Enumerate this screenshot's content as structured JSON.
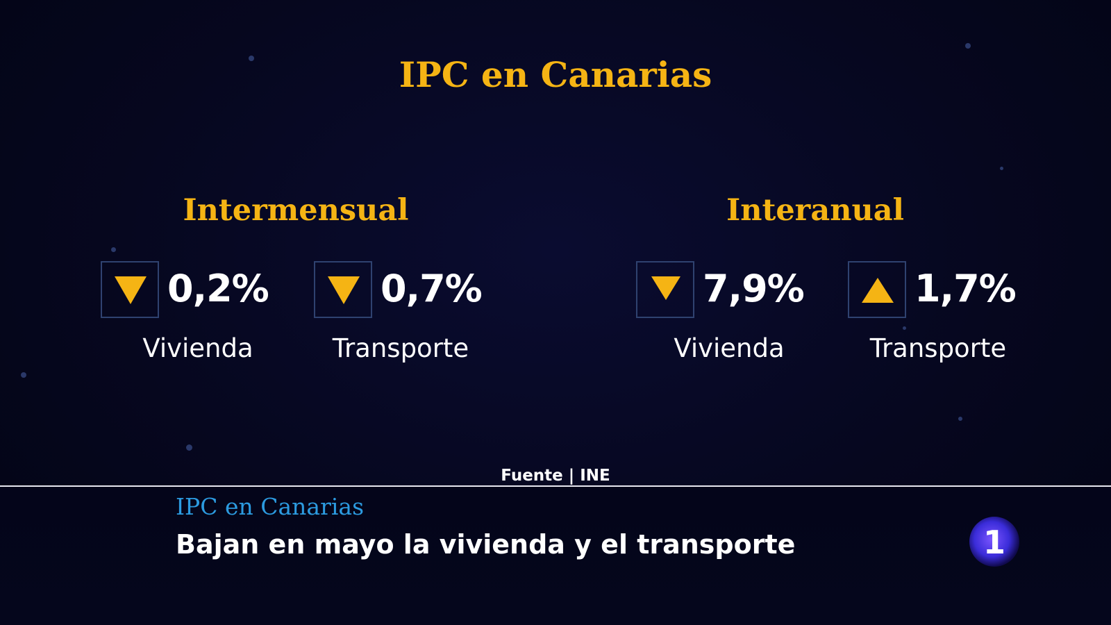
{
  "title": "IPC en Canarias",
  "groups": [
    {
      "title": "Intermensual",
      "items": [
        {
          "direction": "down",
          "value": "0,2%",
          "label": "Vivienda"
        },
        {
          "direction": "down",
          "value": "0,7%",
          "label": "Transporte"
        }
      ]
    },
    {
      "title": "Interanual",
      "items": [
        {
          "direction": "down",
          "value": "7,9%",
          "label": "Vivienda"
        },
        {
          "direction": "up",
          "value": "1,7%",
          "label": "Transporte"
        }
      ]
    }
  ],
  "source": "Fuente | INE",
  "ticker": {
    "kicker": "IPC en Canarias",
    "headline": "Bajan en mayo la vivienda y el transporte"
  },
  "channel_logo": "1",
  "colors": {
    "accent": "#f5b414",
    "background": "#06071f",
    "kicker": "#2c9be0",
    "logo": "#3a2cd9"
  }
}
